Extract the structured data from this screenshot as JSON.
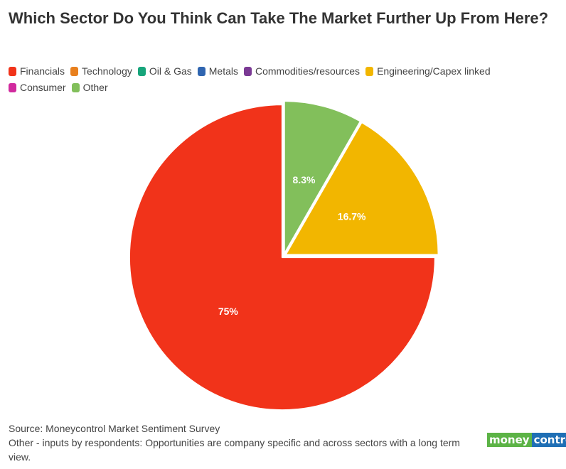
{
  "title": "Which Sector Do You Think Can Take The Market Further Up From Here?",
  "legend": [
    {
      "label": "Financials",
      "color": "#f1331a"
    },
    {
      "label": "Technology",
      "color": "#e8801e"
    },
    {
      "label": "Oil & Gas",
      "color": "#17a57b"
    },
    {
      "label": "Metals",
      "color": "#2f65b0"
    },
    {
      "label": "Commodities/resources",
      "color": "#7b3a94"
    },
    {
      "label": "Engineering/Capex linked",
      "color": "#f2b600"
    },
    {
      "label": "Consumer",
      "color": "#d12a9e"
    },
    {
      "label": "Other",
      "color": "#82bf5b"
    }
  ],
  "chart_data": {
    "type": "pie",
    "slices": [
      {
        "name": "Other",
        "value": 8.3,
        "label": "8.3%",
        "color": "#82bf5b"
      },
      {
        "name": "Engineering/Capex linked",
        "value": 16.7,
        "label": "16.7%",
        "color": "#f2b600"
      },
      {
        "name": "Financials",
        "value": 75,
        "label": "75%",
        "color": "#f1331a"
      }
    ]
  },
  "footer": {
    "source": "Source: Moneycontrol Market Sentiment Survey",
    "note": "Other - inputs by respondents: Opportunities are company specific and across sectors with a long term view."
  },
  "logo": {
    "part1": "money",
    "part2": "control",
    "color1": "#5cb346",
    "color2": "#1f6fb5"
  }
}
